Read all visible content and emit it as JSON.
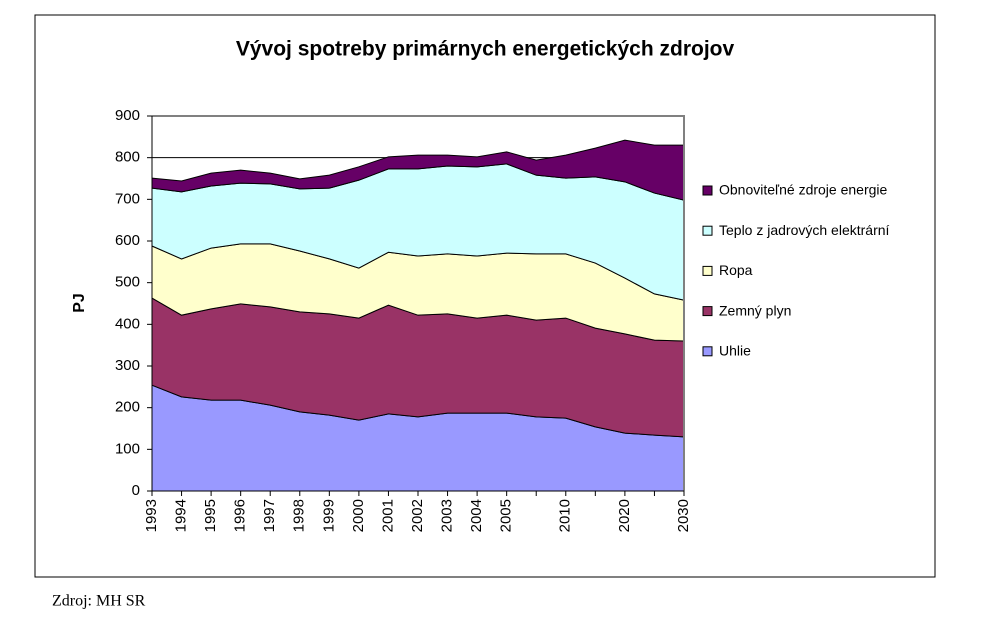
{
  "chart_data": {
    "type": "stacked_area",
    "title": "Vývoj spotreby primárnych energetických zdrojov",
    "ylabel": "PJ",
    "source": "Zdroj: MH SR",
    "categories": [
      "1993",
      "1994",
      "1995",
      "1996",
      "1997",
      "1998",
      "1999",
      "2000",
      "2001",
      "2002",
      "2003",
      "2004",
      "2005",
      null,
      "2010",
      null,
      "2020",
      null,
      "2030"
    ],
    "series": [
      {
        "name": "Uhlie",
        "color": "#9999ff",
        "values": [
          254,
          226,
          218,
          218,
          206,
          190,
          182,
          170,
          185,
          178,
          187,
          187,
          187,
          178,
          175,
          154,
          139,
          134,
          130
        ]
      },
      {
        "name": "Zemný plyn",
        "color": "#993366",
        "values": [
          209,
          196,
          219,
          231,
          236,
          240,
          243,
          245,
          261,
          244,
          238,
          228,
          235,
          232,
          240,
          237,
          238,
          228,
          230
        ]
      },
      {
        "name": "Ropa",
        "color": "#ffffcc",
        "values": [
          125,
          135,
          146,
          144,
          151,
          146,
          132,
          120,
          127,
          142,
          144,
          149,
          149,
          159,
          154,
          156,
          134,
          111,
          98
        ]
      },
      {
        "name": "Teplo z jadrových elektrární",
        "color": "#ccffff",
        "values": [
          139,
          161,
          149,
          146,
          144,
          149,
          170,
          211,
          200,
          209,
          211,
          214,
          214,
          189,
          182,
          207,
          231,
          242,
          240
        ]
      },
      {
        "name": "Obnoviteľné zdroje energie",
        "color": "#660066",
        "values": [
          24,
          26,
          31,
          31,
          26,
          24,
          31,
          32,
          29,
          33,
          26,
          24,
          29,
          36,
          55,
          69,
          100,
          115,
          132
        ]
      }
    ],
    "ylim": [
      0,
      900
    ],
    "yticks": [
      0,
      100,
      200,
      300,
      400,
      500,
      600,
      700,
      800,
      900
    ],
    "grid": true,
    "legend": "right"
  }
}
